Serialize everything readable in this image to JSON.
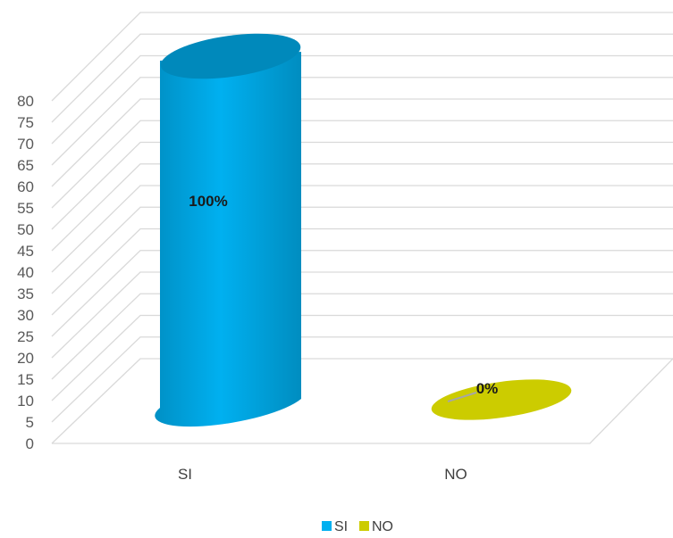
{
  "chart_data": {
    "type": "bar",
    "categories": [
      "SI",
      "NO"
    ],
    "series": [
      {
        "name": "SI",
        "values": [
          80,
          null
        ],
        "labels": [
          "100%",
          ""
        ],
        "color": "#00b0f0"
      },
      {
        "name": "NO",
        "values": [
          null,
          0
        ],
        "labels": [
          "",
          "0%"
        ],
        "color": "#cccc00"
      }
    ],
    "ylim": [
      0,
      80
    ],
    "yticks": [
      "0",
      "5",
      "10",
      "15",
      "20",
      "25",
      "30",
      "35",
      "40",
      "45",
      "50",
      "55",
      "60",
      "65",
      "70",
      "75",
      "80"
    ],
    "grid": true,
    "legend": [
      "SI",
      "NO"
    ],
    "legend_position": "bottom",
    "style": "3d-cylinder",
    "colors": {
      "si": "#00b0f0",
      "no": "#cccc00",
      "grid": "#d9d9d9"
    }
  }
}
